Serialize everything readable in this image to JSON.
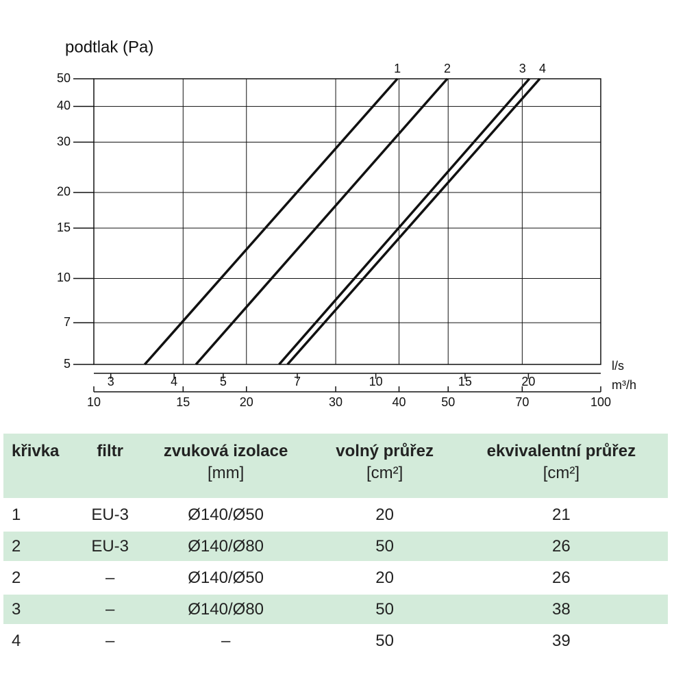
{
  "chart_data": {
    "type": "line",
    "y_label": "podtlak (Pa)",
    "x_label": "m³/h",
    "x2_label": "l/s",
    "xlog": true,
    "ylog": true,
    "grid": true,
    "color": "#111111",
    "xlim": [
      10,
      100
    ],
    "xticks": [
      10,
      15,
      20,
      30,
      40,
      50,
      70,
      100
    ],
    "x2lim": [
      2.778,
      27.78
    ],
    "x2ticks": [
      3,
      4,
      5,
      7,
      10,
      15,
      20
    ],
    "ylim": [
      5,
      50
    ],
    "yticks": [
      5,
      7,
      10,
      15,
      20,
      30,
      40,
      50
    ],
    "series": [
      {
        "name": "1",
        "x": [
          12.6,
          39.7
        ],
        "values": [
          5,
          50
        ]
      },
      {
        "name": "2",
        "x": [
          15.9,
          49.8
        ],
        "values": [
          5,
          50
        ]
      },
      {
        "name": "3",
        "x": [
          23.2,
          72.3
        ],
        "values": [
          5,
          50
        ]
      },
      {
        "name": "4",
        "x": [
          24.1,
          75.8
        ],
        "values": [
          5,
          50
        ]
      }
    ]
  },
  "table": {
    "header": [
      [
        "křivka"
      ],
      [
        "filtr"
      ],
      [
        "zvuková izolace",
        "[mm]"
      ],
      [
        "volný průřez",
        "[cm²]"
      ],
      [
        "ekvivalentní průřez",
        "[cm²]"
      ]
    ],
    "rows": [
      [
        "1",
        "EU-3",
        "Ø140/Ø50",
        "20",
        "21"
      ],
      [
        "2",
        "EU-3",
        "Ø140/Ø80",
        "50",
        "26"
      ],
      [
        "2",
        "–",
        "Ø140/Ø50",
        "20",
        "26"
      ],
      [
        "3",
        "–",
        "Ø140/Ø80",
        "50",
        "38"
      ],
      [
        "4",
        "–",
        "–",
        "50",
        "39"
      ]
    ]
  }
}
